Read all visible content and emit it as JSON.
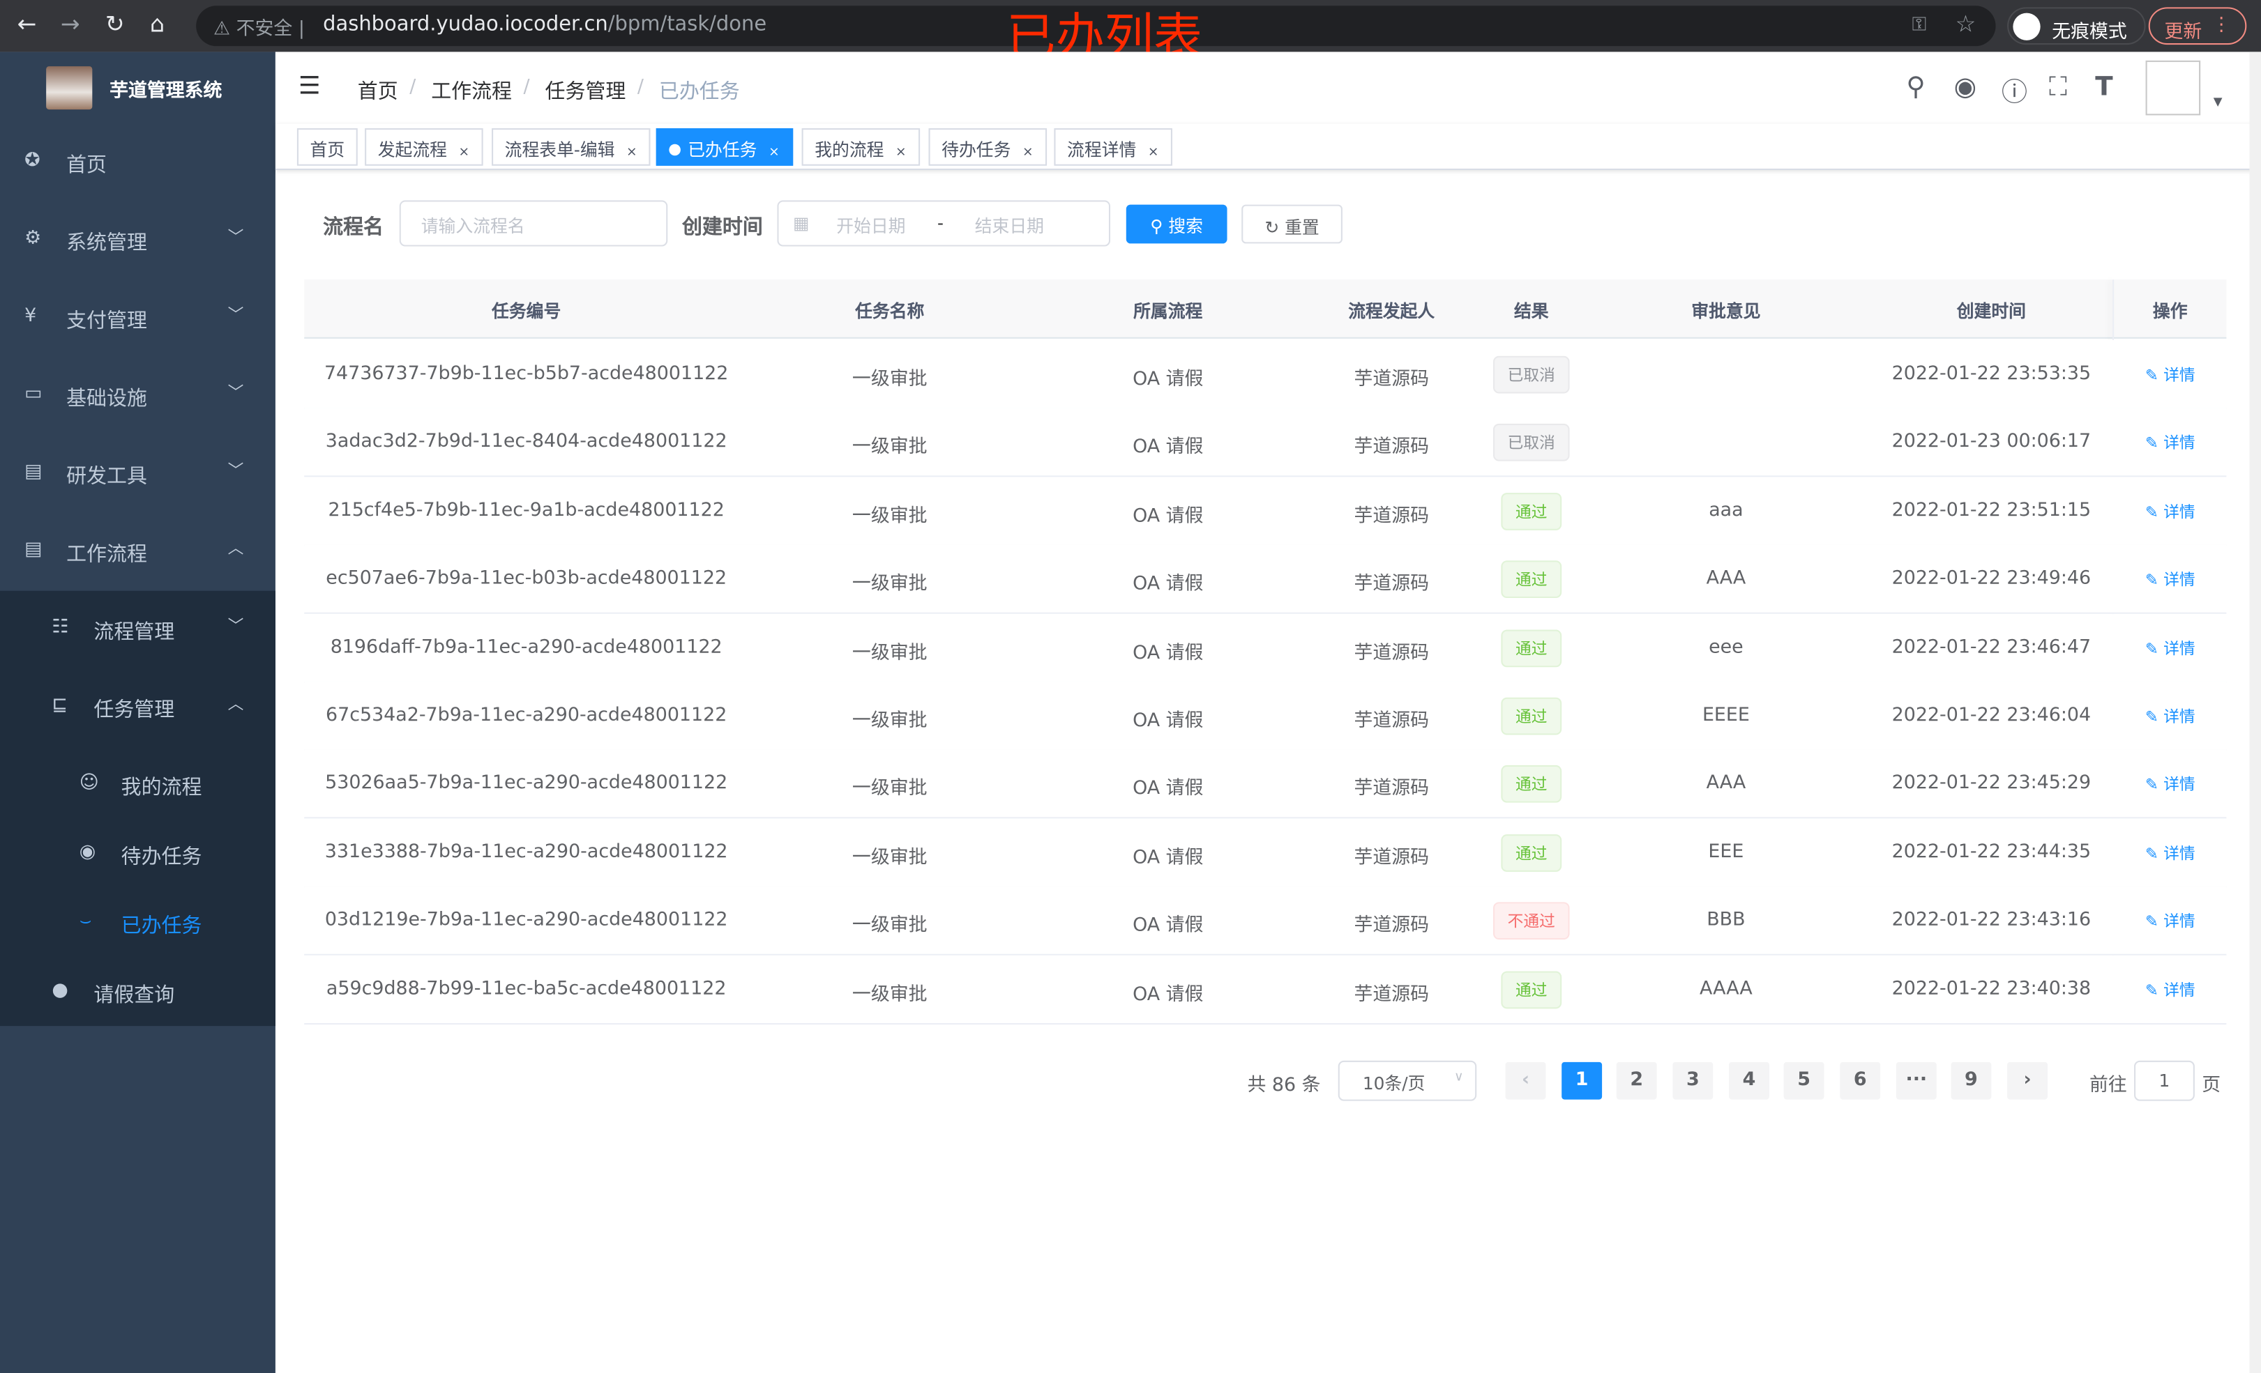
{
  "browser": {
    "insecure": "不安全",
    "url_host": "dashboard.yudao.iocoder.cn",
    "url_path": "/bpm/task/done",
    "incognito": "无痕模式",
    "update": "更新"
  },
  "overlay_title": "已办列表",
  "sidebar": {
    "system_name": "芋道管理系统",
    "items": [
      {
        "label": "首页",
        "icon": "dashboard-icon"
      },
      {
        "label": "系统管理",
        "icon": "gear-icon",
        "arrow": "down"
      },
      {
        "label": "支付管理",
        "icon": "yen-icon",
        "arrow": "down"
      },
      {
        "label": "基础设施",
        "icon": "monitor-icon",
        "arrow": "down"
      },
      {
        "label": "研发工具",
        "icon": "toolbox-icon",
        "arrow": "down"
      },
      {
        "label": "工作流程",
        "icon": "toolbox-icon",
        "arrow": "up"
      },
      {
        "label": "流程管理",
        "icon": "list-icon",
        "arrow": "down"
      },
      {
        "label": "任务管理",
        "icon": "task-icon",
        "arrow": "up"
      },
      {
        "label": "我的流程",
        "icon": "robot-icon"
      },
      {
        "label": "待办任务",
        "icon": "eye-icon"
      },
      {
        "label": "已办任务",
        "icon": "eye-closed-icon",
        "active": true
      },
      {
        "label": "请假查询",
        "icon": "user-icon"
      }
    ]
  },
  "breadcrumb": [
    "首页",
    "工作流程",
    "任务管理",
    "已办任务"
  ],
  "tags": [
    {
      "label": "首页"
    },
    {
      "label": "发起流程"
    },
    {
      "label": "流程表单-编辑"
    },
    {
      "label": "已办任务",
      "active": true
    },
    {
      "label": "我的流程"
    },
    {
      "label": "待办任务"
    },
    {
      "label": "流程详情"
    }
  ],
  "filter": {
    "name_label": "流程名",
    "name_placeholder": "请输入流程名",
    "time_label": "创建时间",
    "start_placeholder": "开始日期",
    "sep": "-",
    "end_placeholder": "结束日期",
    "search": "搜索",
    "reset": "重置"
  },
  "table": {
    "columns": [
      "任务编号",
      "任务名称",
      "所属流程",
      "流程发起人",
      "结果",
      "审批意见",
      "创建时间",
      "操作"
    ],
    "action_label": "详情",
    "rows": [
      [
        "74736737-7b9b-11ec-b5b7-acde48001122",
        "一级审批",
        "OA 请假",
        "芋道源码",
        "已取消",
        "",
        "2022-01-22 23:53:35"
      ],
      [
        "3adac3d2-7b9d-11ec-8404-acde48001122",
        "一级审批",
        "OA 请假",
        "芋道源码",
        "已取消",
        "",
        "2022-01-23 00:06:17"
      ],
      [
        "215cf4e5-7b9b-11ec-9a1b-acde48001122",
        "一级审批",
        "OA 请假",
        "芋道源码",
        "通过",
        "aaa",
        "2022-01-22 23:51:15"
      ],
      [
        "ec507ae6-7b9a-11ec-b03b-acde48001122",
        "一级审批",
        "OA 请假",
        "芋道源码",
        "通过",
        "AAA",
        "2022-01-22 23:49:46"
      ],
      [
        "8196daff-7b9a-11ec-a290-acde48001122",
        "一级审批",
        "OA 请假",
        "芋道源码",
        "通过",
        "eee",
        "2022-01-22 23:46:47"
      ],
      [
        "67c534a2-7b9a-11ec-a290-acde48001122",
        "一级审批",
        "OA 请假",
        "芋道源码",
        "通过",
        "EEEE",
        "2022-01-22 23:46:04"
      ],
      [
        "53026aa5-7b9a-11ec-a290-acde48001122",
        "一级审批",
        "OA 请假",
        "芋道源码",
        "通过",
        "AAA",
        "2022-01-22 23:45:29"
      ],
      [
        "331e3388-7b9a-11ec-a290-acde48001122",
        "一级审批",
        "OA 请假",
        "芋道源码",
        "通过",
        "EEE",
        "2022-01-22 23:44:35"
      ],
      [
        "03d1219e-7b9a-11ec-a290-acde48001122",
        "一级审批",
        "OA 请假",
        "芋道源码",
        "不通过",
        "BBB",
        "2022-01-22 23:43:16"
      ],
      [
        "a59c9d88-7b99-11ec-ba5c-acde48001122",
        "一级审批",
        "OA 请假",
        "芋道源码",
        "通过",
        "AAAA",
        "2022-01-22 23:40:38"
      ]
    ]
  },
  "pagination": {
    "total": "共 86 条",
    "page_size": "10条/页",
    "pages": [
      "1",
      "2",
      "3",
      "4",
      "5",
      "6",
      "···",
      "9"
    ],
    "current": "1",
    "goto_label": "前往",
    "goto_value": "1",
    "page_suffix": "页"
  },
  "colors": {
    "accent": "#1890ff",
    "sidebar": "#304156",
    "submenu": "#1f2d3d",
    "pass": "#67c23a",
    "fail": "#f56c6c",
    "cancel": "#909399"
  }
}
